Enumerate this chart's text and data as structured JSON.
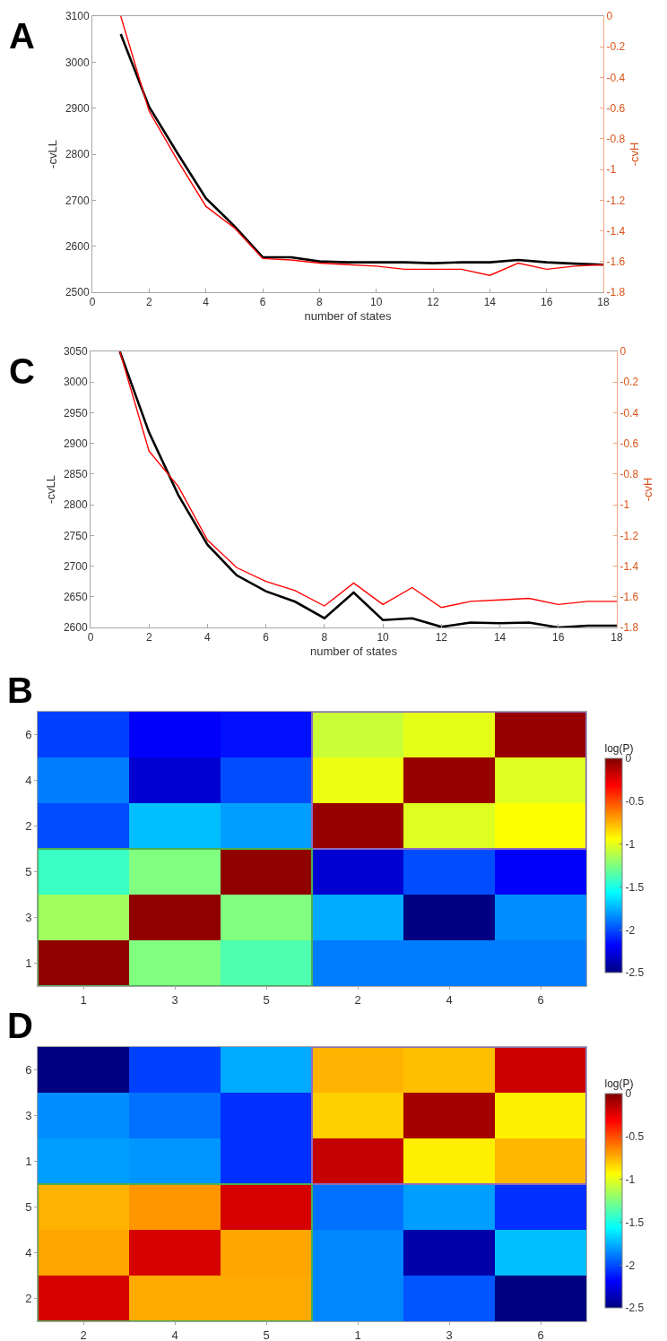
{
  "chart_data": [
    {
      "type": "line",
      "title": "A",
      "xlabel": "number of states",
      "ylabel": "-cvLL",
      "y2label": "-cvH",
      "x": [
        1,
        2,
        3,
        4,
        5,
        6,
        7,
        8,
        9,
        10,
        11,
        12,
        13,
        14,
        15,
        16,
        17,
        18
      ],
      "series": [
        {
          "color": "#000000",
          "values": [
            3061,
            2903,
            2802,
            2704,
            2644,
            2576,
            2576,
            2567,
            2565,
            2565,
            2565,
            2563,
            2565,
            2565,
            2570,
            2565,
            2562,
            2560
          ]
        },
        {
          "color": "#ff0000",
          "axis": "y2",
          "values": [
            0,
            -0.62,
            -0.94,
            -1.24,
            -1.38,
            -1.58,
            -1.59,
            -1.61,
            -1.62,
            -1.63,
            -1.65,
            -1.65,
            -1.65,
            -1.69,
            -1.61,
            -1.65,
            -1.63,
            -1.62
          ]
        }
      ],
      "xlim": [
        0,
        18
      ],
      "xticks": [
        0,
        2,
        4,
        6,
        8,
        10,
        12,
        14,
        16,
        18
      ],
      "ylim": [
        2500,
        3100
      ],
      "yticks": [
        2500,
        2600,
        2700,
        2800,
        2900,
        3000,
        3100
      ],
      "y2lim": [
        -1.8,
        0
      ],
      "y2ticks": [
        0,
        -0.2,
        -0.4,
        -0.6,
        -0.8,
        -1,
        -1.2,
        -1.4,
        -1.6,
        -1.8
      ]
    },
    {
      "type": "line",
      "title": "C",
      "xlabel": "number of states",
      "ylabel": "-cvLL",
      "y2label": "-cvH",
      "x": [
        1,
        2,
        3,
        4,
        5,
        6,
        7,
        8,
        9,
        10,
        11,
        12,
        13,
        14,
        15,
        16,
        17,
        18
      ],
      "series": [
        {
          "color": "#000000",
          "values": [
            3050,
            2918,
            2816,
            2735,
            2685,
            2659,
            2642,
            2615,
            2657,
            2612,
            2615,
            2601,
            2608,
            2607,
            2608,
            2600,
            2603,
            2603
          ]
        },
        {
          "color": "#ff0000",
          "axis": "y2",
          "values": [
            0,
            -0.65,
            -0.88,
            -1.23,
            -1.41,
            -1.5,
            -1.56,
            -1.66,
            -1.51,
            -1.65,
            -1.54,
            -1.67,
            -1.63,
            -1.62,
            -1.61,
            -1.65,
            -1.63,
            -1.63
          ]
        }
      ],
      "xlim": [
        0,
        18
      ],
      "xticks": [
        0,
        2,
        4,
        6,
        8,
        10,
        12,
        14,
        16,
        18
      ],
      "ylim": [
        2600,
        3050
      ],
      "yticks": [
        2600,
        2650,
        2700,
        2750,
        2800,
        2850,
        2900,
        2950,
        3000,
        3050
      ],
      "y2lim": [
        -1.8,
        0
      ],
      "y2ticks": [
        0,
        -0.2,
        -0.4,
        -0.6,
        -0.8,
        -1,
        -1.2,
        -1.4,
        -1.6,
        -1.8
      ]
    },
    {
      "type": "heatmap",
      "title": "B",
      "clabel": "log(P)",
      "categories": [
        "1",
        "3",
        "5",
        "2",
        "4",
        "6"
      ],
      "y_categories": [
        "6",
        "4",
        "2",
        "5",
        "3",
        "1"
      ],
      "cells": [
        [
          -2.03,
          -2.2,
          -2.15,
          -1.07,
          -1.0,
          -0.06
        ],
        [
          -1.88,
          -2.3,
          -2.0,
          -0.98,
          -0.06,
          -1.02
        ],
        [
          -2.0,
          -1.72,
          -1.8,
          -0.06,
          -1.02,
          -0.94
        ],
        [
          -1.42,
          -1.25,
          -0.04,
          -2.3,
          -2.0,
          -2.2
        ],
        [
          -1.17,
          -0.04,
          -1.25,
          -1.77,
          -2.5,
          -1.84
        ],
        [
          -0.04,
          -1.25,
          -1.37,
          -1.88,
          -1.88,
          -1.88
        ]
      ],
      "clim": [
        -2.5,
        0
      ],
      "cticks": [
        0,
        -0.5,
        -1,
        -1.5,
        -2,
        -2.5
      ]
    },
    {
      "type": "heatmap",
      "title": "D",
      "clabel": "log(P)",
      "categories": [
        "2",
        "4",
        "5",
        "1",
        "3",
        "6"
      ],
      "y_categories": [
        "6",
        "3",
        "1",
        "5",
        "4",
        "2"
      ],
      "cells": [
        [
          -2.5,
          -2.03,
          -1.77,
          -0.75,
          -0.78,
          -0.19
        ],
        [
          -1.84,
          -1.91,
          -2.07,
          -0.82,
          -0.09,
          -0.9
        ],
        [
          -1.8,
          -1.82,
          -2.07,
          -0.17,
          -0.9,
          -0.76
        ],
        [
          -0.75,
          -0.68,
          -0.21,
          -1.91,
          -1.8,
          -2.07
        ],
        [
          -0.72,
          -0.21,
          -0.72,
          -1.86,
          -2.4,
          -1.72
        ],
        [
          -0.21,
          -0.73,
          -0.73,
          -1.86,
          -1.98,
          -2.5
        ]
      ],
      "clim": [
        -2.5,
        0
      ],
      "cticks": [
        0,
        -0.5,
        -1,
        -1.5,
        -2,
        -2.5
      ]
    }
  ]
}
